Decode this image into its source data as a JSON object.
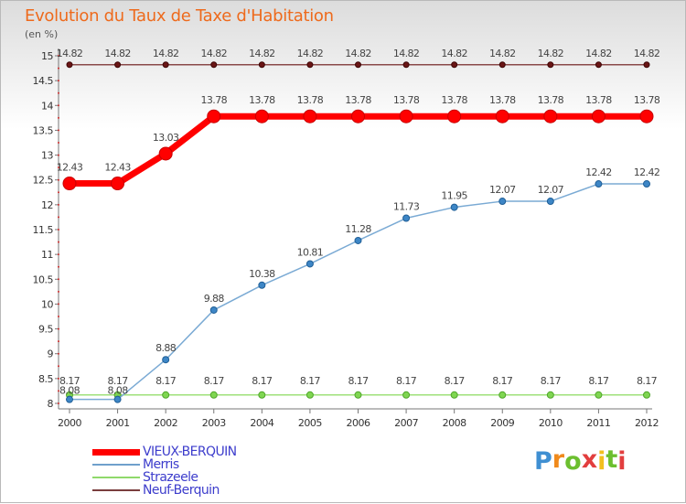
{
  "title": "Evolution du Taux de Taxe d'Habitation",
  "unit_label": "(en %)",
  "brand": "Proxiti",
  "chart_data": {
    "type": "line",
    "x": [
      "2000",
      "2001",
      "2002",
      "2003",
      "2004",
      "2005",
      "2006",
      "2007",
      "2008",
      "2009",
      "2010",
      "2011",
      "2012"
    ],
    "ylim": [
      8,
      15
    ],
    "yticks": [
      "8",
      "8.5",
      "9",
      "9.5",
      "10",
      "10.5",
      "11",
      "11.5",
      "12",
      "12.5",
      "13",
      "13.5",
      "14",
      "14.5",
      "15"
    ],
    "grid": false,
    "legend": "bottom-left",
    "series": [
      {
        "name": "VIEUX-BERQUIN",
        "color": "#ff0000",
        "values": [
          12.43,
          12.43,
          13.03,
          13.78,
          13.78,
          13.78,
          13.78,
          13.78,
          13.78,
          13.78,
          13.78,
          13.78,
          13.78
        ],
        "labels": [
          "12.43",
          "12.43",
          "13.03",
          "13.78",
          "13.78",
          "13.78",
          "13.78",
          "13.78",
          "13.78",
          "13.78",
          "13.78",
          "13.78",
          "13.78"
        ]
      },
      {
        "name": "Merris",
        "color": "#6fa0cc",
        "values": [
          8.08,
          8.08,
          8.88,
          9.88,
          10.38,
          10.81,
          11.28,
          11.73,
          11.95,
          12.07,
          12.07,
          12.42,
          12.42
        ],
        "labels": [
          "8.08",
          "8.08",
          "8.88",
          "9.88",
          "10.38",
          "10.81",
          "11.28",
          "11.73",
          "11.95",
          "12.07",
          "12.07",
          "12.42",
          "12.42"
        ]
      },
      {
        "name": "Strazeele",
        "color": "#8fd96b",
        "values": [
          8.17,
          8.17,
          8.17,
          8.17,
          8.17,
          8.17,
          8.17,
          8.17,
          8.17,
          8.17,
          8.17,
          8.17,
          8.17
        ],
        "labels": [
          "8.17",
          "8.17",
          "8.17",
          "8.17",
          "8.17",
          "8.17",
          "8.17",
          "8.17",
          "8.17",
          "8.17",
          "8.17",
          "8.17",
          "8.17"
        ]
      },
      {
        "name": "Neuf-Berquin",
        "color": "#7a3d3d",
        "values": [
          14.82,
          14.82,
          14.82,
          14.82,
          14.82,
          14.82,
          14.82,
          14.82,
          14.82,
          14.82,
          14.82,
          14.82,
          14.82
        ],
        "labels": [
          "14.82",
          "14.82",
          "14.82",
          "14.82",
          "14.82",
          "14.82",
          "14.82",
          "14.82",
          "14.82",
          "14.82",
          "14.82",
          "14.82",
          "14.82"
        ]
      }
    ]
  }
}
